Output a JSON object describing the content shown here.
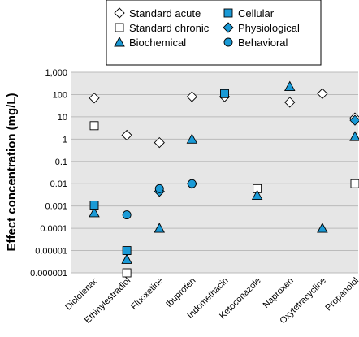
{
  "chart_data": {
    "type": "scatter",
    "ylabel": "Effect concentration (mg/L)",
    "yscale": "log",
    "ylim": [
      1e-06,
      1000
    ],
    "yticks": [
      "1,000",
      "100",
      "10",
      "1",
      "0.1",
      "0.01",
      "0.001",
      "0.0001",
      "0.00001",
      "0.000001"
    ],
    "grid": true,
    "legend_position": "top",
    "categories": [
      "Diclofenac",
      "Ethinylestradiol",
      "Fluoxetine",
      "Ibuprofen",
      "Indomethacin",
      "Ketoconazole",
      "Naproxen",
      "Oxytetracycline",
      "Propanolol"
    ],
    "series": [
      {
        "name": "Standard acute",
        "marker": "diamond-open",
        "color": "#ffffff",
        "points": [
          [
            "Diclofenac",
            70
          ],
          [
            "Ethinylestradiol",
            1.5
          ],
          [
            "Fluoxetine",
            0.7
          ],
          [
            "Ibuprofen",
            80
          ],
          [
            "Indomethacin",
            80
          ],
          [
            "Naproxen",
            45
          ],
          [
            "Oxytetracycline",
            110
          ],
          [
            "Propanolol",
            9
          ]
        ]
      },
      {
        "name": "Standard chronic",
        "marker": "square-open",
        "color": "#ffffff",
        "points": [
          [
            "Diclofenac",
            4
          ],
          [
            "Ethinylestradiol",
            1e-06
          ],
          [
            "Ketoconazole",
            0.006
          ],
          [
            "Propanolol",
            0.01
          ]
        ]
      },
      {
        "name": "Biochemical",
        "marker": "triangle",
        "color": "#1a9ad6",
        "points": [
          [
            "Diclofenac",
            0.0005
          ],
          [
            "Ethinylestradiol",
            4e-06
          ],
          [
            "Fluoxetine",
            0.0001
          ],
          [
            "Ibuprofen",
            1
          ],
          [
            "Ketoconazole",
            0.003
          ],
          [
            "Naproxen",
            230
          ],
          [
            "Oxytetracycline",
            0.0001
          ],
          [
            "Propanolol",
            1.3
          ]
        ]
      },
      {
        "name": "Cellular",
        "marker": "square",
        "color": "#1a9ad6",
        "points": [
          [
            "Diclofenac",
            0.0011
          ],
          [
            "Ethinylestradiol",
            1e-05
          ],
          [
            "Indomethacin",
            110
          ]
        ]
      },
      {
        "name": "Physiological",
        "marker": "diamond",
        "color": "#1a9ad6",
        "points": [
          [
            "Fluoxetine",
            0.0045
          ],
          [
            "Ibuprofen",
            0.01
          ],
          [
            "Propanolol",
            7
          ]
        ]
      },
      {
        "name": "Behavioral",
        "marker": "circle",
        "color": "#1a9ad6",
        "points": [
          [
            "Ethinylestradiol",
            0.0004
          ],
          [
            "Fluoxetine",
            0.006
          ],
          [
            "Ibuprofen",
            0.01
          ]
        ]
      }
    ],
    "colors": {
      "plot_background": "#ffffff",
      "grid": "#bbbbbb",
      "marker_fill": "#1a9ad6",
      "marker_stroke": "#000000"
    }
  }
}
